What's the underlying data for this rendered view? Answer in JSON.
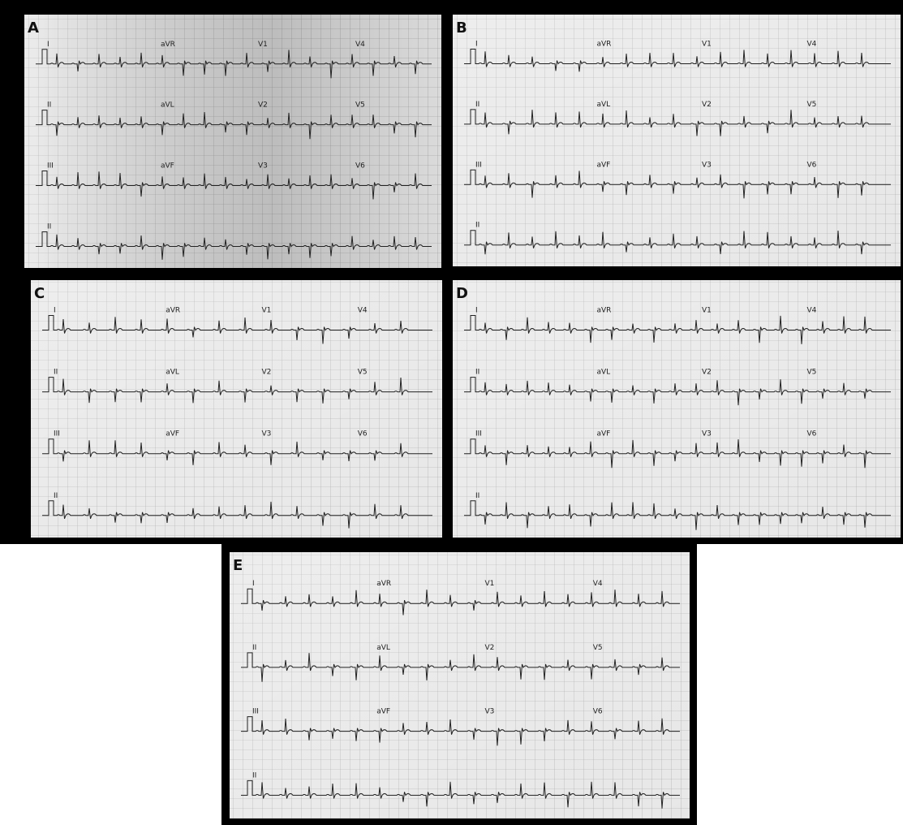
{
  "panels": [
    {
      "label": "A",
      "leads": [
        [
          "I",
          "aVR",
          "V1",
          "V4"
        ],
        [
          "II",
          "aVL",
          "V2",
          "V5"
        ],
        [
          "III",
          "aVF",
          "V3",
          "V6"
        ],
        [
          "II"
        ]
      ]
    },
    {
      "label": "B",
      "leads": [
        [
          "I",
          "aVR",
          "V1",
          "V4"
        ],
        [
          "II",
          "aVL",
          "V2",
          "V5"
        ],
        [
          "III",
          "aVF",
          "V3",
          "V6"
        ],
        [
          "II"
        ]
      ]
    },
    {
      "label": "C",
      "leads": [
        [
          "I",
          "aVR",
          "V1",
          "V4"
        ],
        [
          "II",
          "aVL",
          "V2",
          "V5"
        ],
        [
          "III",
          "aVF",
          "V3",
          "V6"
        ],
        [
          "II"
        ]
      ]
    },
    {
      "label": "D",
      "leads": [
        [
          "I",
          "aVR",
          "V1",
          "V4"
        ],
        [
          "II",
          "aVL",
          "V2",
          "V5"
        ],
        [
          "III",
          "aVF",
          "V3",
          "V6"
        ],
        [
          "II"
        ]
      ]
    },
    {
      "label": "E",
      "leads": [
        [
          "I",
          "aVR",
          "V1",
          "V4"
        ],
        [
          "II",
          "aVL",
          "V2",
          "V5"
        ],
        [
          "III",
          "aVF",
          "V3",
          "V6"
        ],
        [
          "II"
        ]
      ]
    }
  ]
}
